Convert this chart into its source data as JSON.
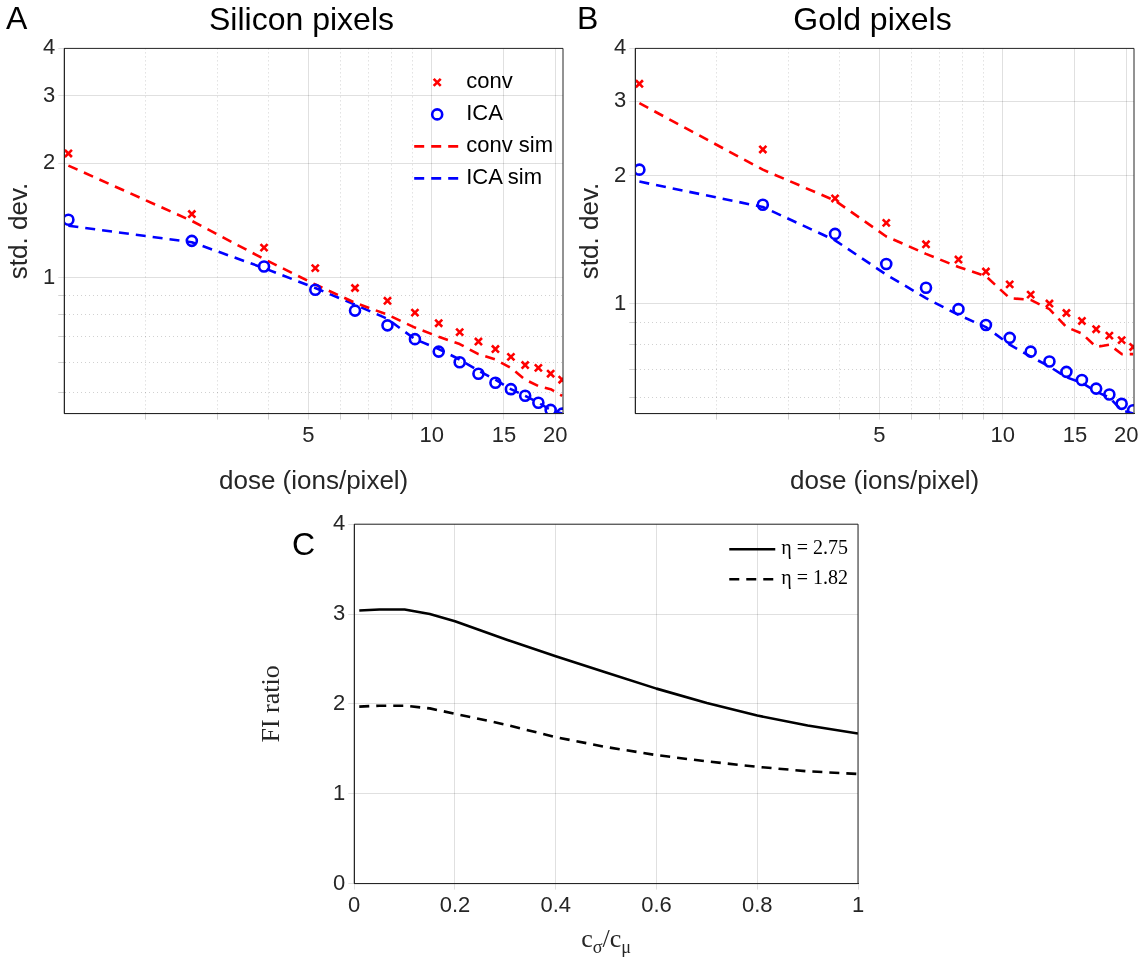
{
  "chart_data": [
    {
      "type": "line",
      "title": "Silicon pixels",
      "annotations": [
        "A"
      ],
      "xlabel": "dose (ions/pixel)",
      "ylabel": "std. dev.",
      "log": "xy",
      "grid": true,
      "legend": "top right",
      "x": [
        1.3,
        2.6,
        3.9,
        5.2,
        6.5,
        7.8,
        9.1,
        10.4,
        11.7,
        13,
        14.3,
        15.6,
        16.9,
        18.2,
        19.5,
        20.8
      ],
      "xlim": [
        1.27,
        20.9
      ],
      "ylim": [
        0.44,
        4
      ],
      "xticks": [
        {
          "value": 2,
          "label": null
        },
        {
          "value": 3,
          "label": null
        },
        {
          "value": 4,
          "label": null
        },
        5,
        {
          "value": 6,
          "label": null
        },
        {
          "value": 7,
          "label": null
        },
        {
          "value": 8,
          "label": null
        },
        {
          "value": 9,
          "label": null
        },
        10,
        15,
        20
      ],
      "yticks": [
        {
          "value": 0.5,
          "label": null
        },
        {
          "value": 0.6,
          "label": null
        },
        {
          "value": 0.7,
          "label": null
        },
        {
          "value": 0.8,
          "label": null
        },
        {
          "value": 0.9,
          "label": null
        },
        1,
        2,
        3,
        4
      ],
      "series": [
        {
          "name": "conv",
          "type": "scatter",
          "marker": "cross",
          "color": "#ff0000",
          "values": [
            2.12,
            1.47,
            1.2,
            1.06,
            0.94,
            0.87,
            0.81,
            0.76,
            0.72,
            0.68,
            0.65,
            0.62,
            0.59,
            0.58,
            0.56,
            0.54
          ]
        },
        {
          "name": "ICA",
          "type": "scatter",
          "marker": "circle",
          "color": "#0000ff",
          "values": [
            1.42,
            1.25,
            1.07,
            0.93,
            0.82,
            0.75,
            0.69,
            0.64,
            0.6,
            0.56,
            0.53,
            0.51,
            0.49,
            0.47,
            0.45,
            0.44
          ]
        },
        {
          "name": "conv sim",
          "type": "line",
          "line_style": "dashed",
          "color": "#ff0000",
          "values": [
            1.97,
            1.41,
            1.12,
            0.96,
            0.86,
            0.8,
            0.74,
            0.7,
            0.67,
            0.63,
            0.61,
            0.58,
            0.54,
            0.52,
            0.51,
            0.49
          ]
        },
        {
          "name": "ICA sim",
          "type": "line",
          "line_style": "dashed",
          "color": "#0000ff",
          "values": [
            1.37,
            1.24,
            1.06,
            0.94,
            0.85,
            0.78,
            0.69,
            0.65,
            0.61,
            0.57,
            0.54,
            0.51,
            0.49,
            0.47,
            0.45,
            0.44
          ]
        }
      ]
    },
    {
      "type": "line",
      "title": "Gold pixels",
      "annotations": [
        "B"
      ],
      "xlabel": "dose (ions/pixel)",
      "ylabel": "std. dev.",
      "log": "xy",
      "grid": true,
      "x": [
        1.3,
        2.6,
        3.9,
        5.2,
        6.5,
        7.8,
        9.1,
        10.4,
        11.7,
        13,
        14.3,
        15.6,
        16.9,
        18.2,
        19.5,
        20.8
      ],
      "xlim": [
        1.27,
        20.9
      ],
      "ylim": [
        0.55,
        4
      ],
      "xticks": [
        {
          "value": 2,
          "label": null
        },
        {
          "value": 3,
          "label": null
        },
        {
          "value": 4,
          "label": null
        },
        5,
        {
          "value": 6,
          "label": null
        },
        {
          "value": 7,
          "label": null
        },
        {
          "value": 8,
          "label": null
        },
        {
          "value": 9,
          "label": null
        },
        10,
        15,
        20
      ],
      "yticks": [
        {
          "value": 0.6,
          "label": null
        },
        {
          "value": 0.7,
          "label": null
        },
        {
          "value": 0.8,
          "label": null
        },
        {
          "value": 0.9,
          "label": null
        },
        1,
        2,
        3,
        4
      ],
      "series": [
        {
          "type": "scatter",
          "marker": "cross",
          "color": "#ff0000",
          "values": [
            3.3,
            2.31,
            1.77,
            1.55,
            1.38,
            1.27,
            1.19,
            1.11,
            1.05,
            1.0,
            0.95,
            0.91,
            0.87,
            0.84,
            0.82,
            0.79
          ]
        },
        {
          "type": "scatter",
          "marker": "circle",
          "color": "#0000ff",
          "values": [
            2.07,
            1.71,
            1.46,
            1.24,
            1.09,
            0.97,
            0.89,
            0.83,
            0.77,
            0.73,
            0.69,
            0.66,
            0.63,
            0.61,
            0.58,
            0.56
          ]
        },
        {
          "type": "line",
          "line_style": "dashed",
          "color": "#ff0000",
          "values": [
            2.97,
            2.07,
            1.75,
            1.44,
            1.31,
            1.22,
            1.16,
            1.03,
            1.02,
            0.97,
            0.88,
            0.85,
            0.79,
            0.8,
            0.76,
            0.76
          ]
        },
        {
          "type": "line",
          "line_style": "dashed",
          "color": "#0000ff",
          "values": [
            1.94,
            1.69,
            1.41,
            1.17,
            1.03,
            0.94,
            0.88,
            0.8,
            0.75,
            0.71,
            0.67,
            0.65,
            0.62,
            0.6,
            0.56,
            0.55
          ]
        }
      ]
    },
    {
      "type": "line",
      "annotations": [
        "C"
      ],
      "xlabel": "c$_{σ}$/c$_{μ}$",
      "ylabel": "FI ratio",
      "grid": true,
      "legend": "top right",
      "x": [
        0.01,
        0.05,
        0.1,
        0.15,
        0.2,
        0.3,
        0.4,
        0.5,
        0.6,
        0.7,
        0.8,
        0.9,
        1.0
      ],
      "xlim": [
        0,
        1
      ],
      "ylim": [
        0,
        4
      ],
      "xticks": [
        0,
        0.2,
        0.4,
        0.6,
        0.8,
        1
      ],
      "yticks": [
        0,
        1,
        2,
        3,
        4
      ],
      "series": [
        {
          "name": "η = 2.75",
          "line_style": "solid",
          "color": "#000000",
          "values": [
            3.04,
            3.05,
            3.05,
            3.0,
            2.92,
            2.72,
            2.53,
            2.35,
            2.17,
            2.01,
            1.87,
            1.76,
            1.67
          ]
        },
        {
          "name": "η = 1.82",
          "line_style": "dashed",
          "color": "#000000",
          "values": [
            1.97,
            1.98,
            1.98,
            1.95,
            1.89,
            1.77,
            1.63,
            1.52,
            1.43,
            1.36,
            1.3,
            1.25,
            1.22
          ]
        }
      ]
    }
  ]
}
